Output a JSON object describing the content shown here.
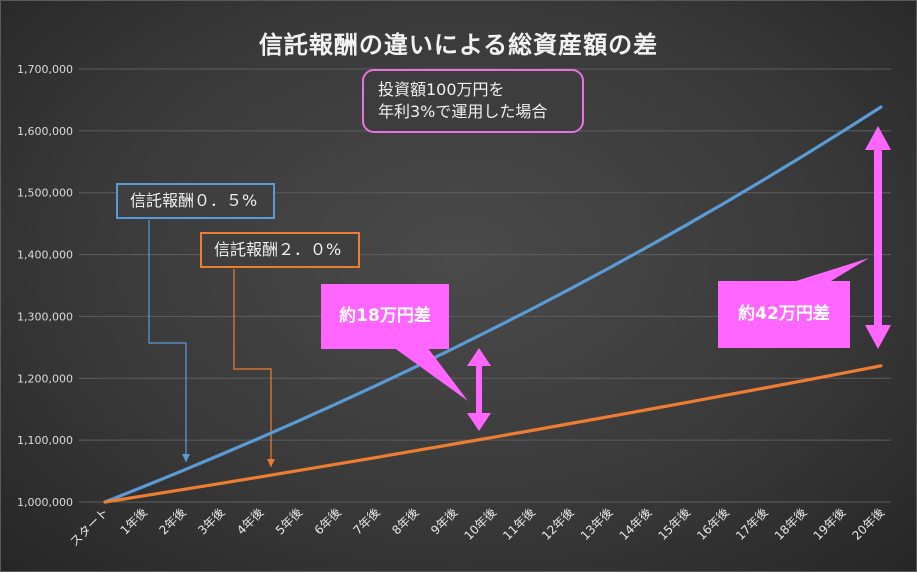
{
  "chart_data": {
    "type": "line",
    "title": "信託報酬の違いによる総資産額の差",
    "categories": [
      "スタート",
      "1年後",
      "2年後",
      "3年後",
      "4年後",
      "5年後",
      "6年後",
      "7年後",
      "8年後",
      "9年後",
      "10年後",
      "11年後",
      "12年後",
      "13年後",
      "14年後",
      "15年後",
      "16年後",
      "17年後",
      "18年後",
      "19年後",
      "20年後"
    ],
    "y_ticks": [
      "1,000,000",
      "1,100,000",
      "1,200,000",
      "1,300,000",
      "1,400,000",
      "1,500,000",
      "1,600,000",
      "1,700,000"
    ],
    "ylim": [
      1000000,
      1700000
    ],
    "grid": "horizontal",
    "series": [
      {
        "name": "信託報酬0.5%",
        "color": "#5b9bd5",
        "values": [
          1000000,
          1025000,
          1050625,
          1076891,
          1103813,
          1131408,
          1159693,
          1188686,
          1218403,
          1248863,
          1280085,
          1312087,
          1344889,
          1378511,
          1412974,
          1448298,
          1484506,
          1521618,
          1559659,
          1598650,
          1638616
        ]
      },
      {
        "name": "信託報酬2.0%",
        "color": "#ed7d31",
        "values": [
          1000000,
          1010000,
          1020100,
          1030301,
          1040604,
          1051010,
          1061520,
          1072135,
          1082857,
          1093685,
          1104622,
          1115668,
          1126825,
          1138093,
          1149474,
          1160969,
          1172579,
          1184304,
          1196147,
          1208109,
          1220190
        ]
      }
    ],
    "annotations": {
      "condition_line1": "投資額100万円を",
      "condition_line2": "年利3%で運用した場合",
      "label_series1": "信託報酬０．５%",
      "label_series2": "信託報酬２．０%",
      "diff_10y": "約18万円差",
      "diff_20y": "約42万円差"
    },
    "accent_color": "#ff66ff"
  }
}
